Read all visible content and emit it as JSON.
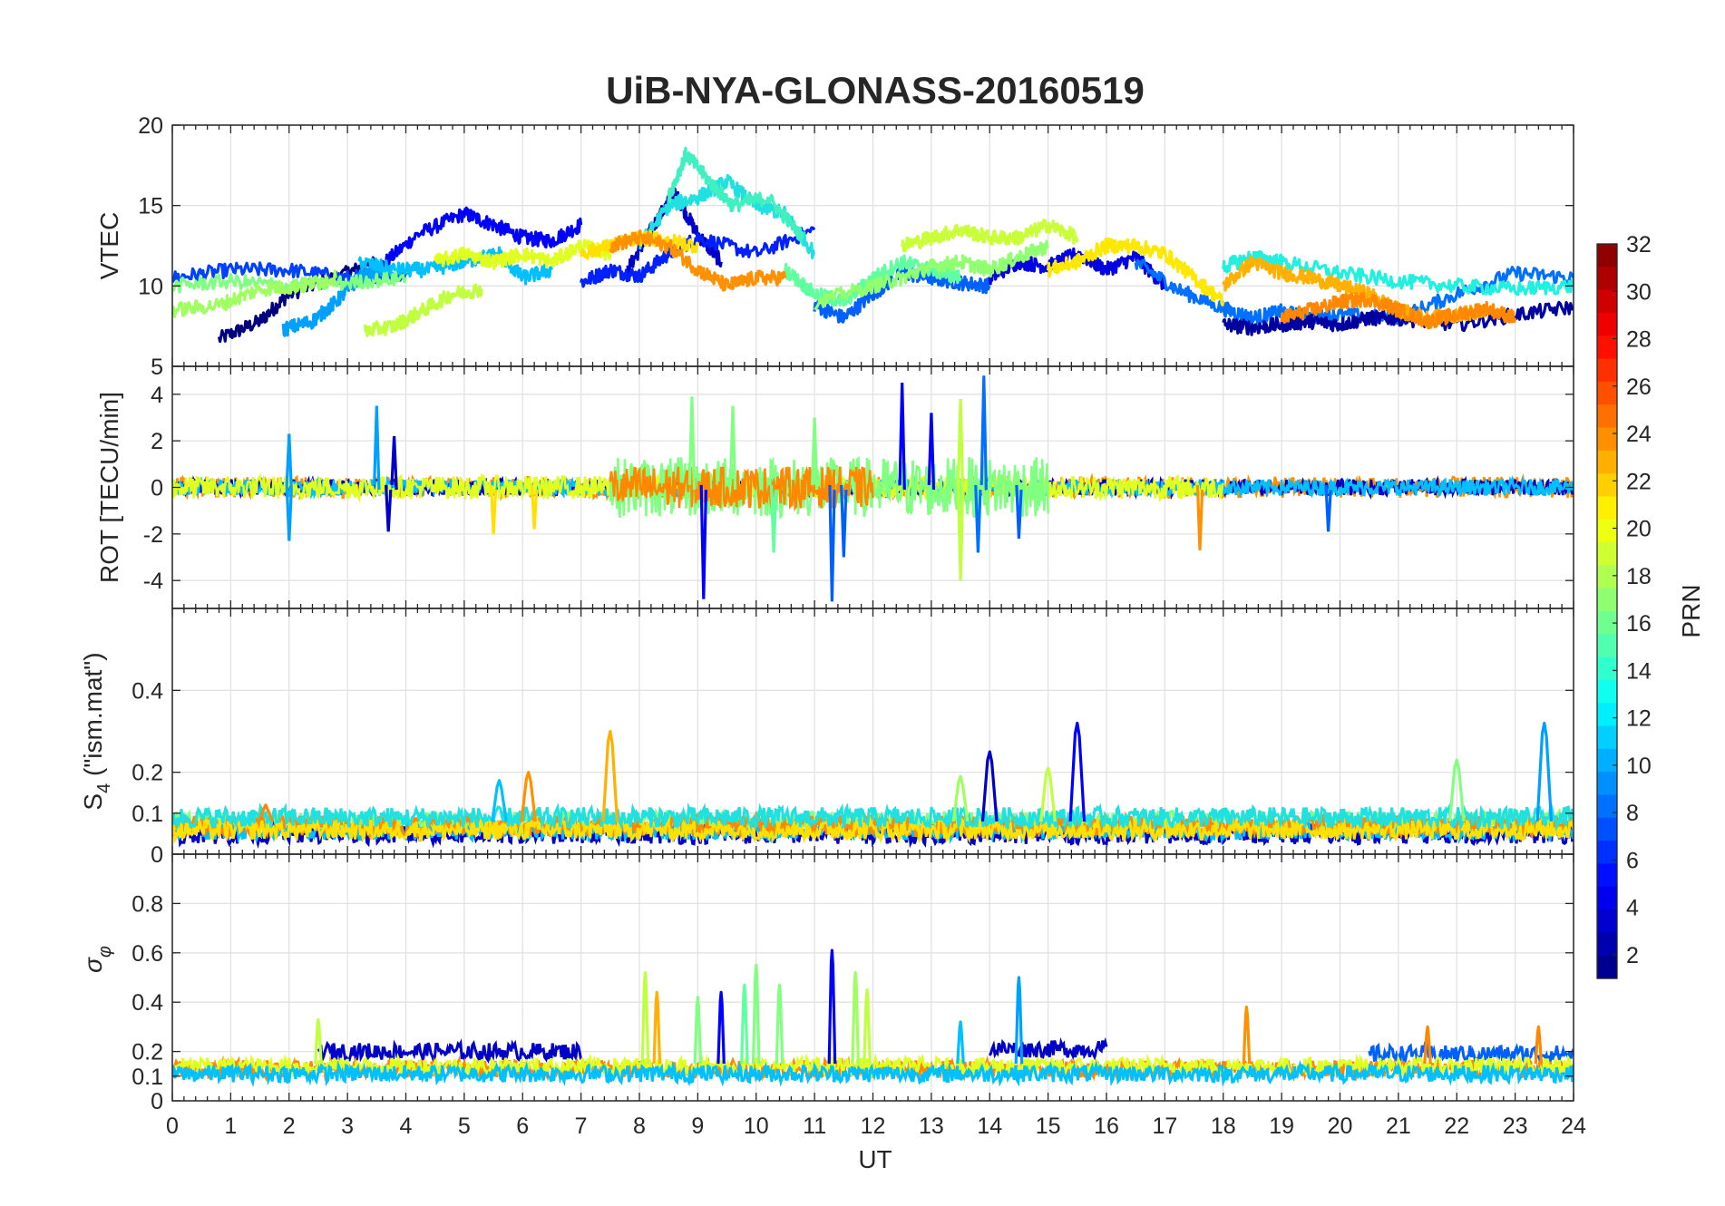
{
  "figure": {
    "title": "UiB-NYA-GLONASS-20160519"
  },
  "chart_data": [
    {
      "type": "line",
      "panel": "vtec",
      "ylabel": "VTEC",
      "xlim": [
        0,
        24
      ],
      "ylim": [
        5,
        20
      ],
      "yticks": [
        5,
        10,
        15,
        20
      ],
      "x_tick_labels": "none",
      "grid": true,
      "series": [
        {
          "prn": 1,
          "color": "#00007f",
          "x": [
            0.8,
            1.5,
            2.0,
            3.0,
            3.5
          ],
          "y": [
            6.7,
            7.8,
            9.5,
            10.8,
            11.5
          ]
        },
        {
          "prn": 5,
          "color": "#0000ff",
          "x": [
            3.5,
            4.2,
            5.0,
            5.5,
            6.0,
            6.5,
            7.0
          ],
          "y": [
            11.0,
            13.2,
            14.5,
            13.8,
            13.0,
            12.8,
            13.8
          ]
        },
        {
          "prn": 3,
          "color": "#0000c8",
          "x": [
            7.8,
            8.2,
            8.6,
            9.0,
            9.4
          ],
          "y": [
            11.0,
            13.5,
            15.8,
            13.2,
            11.5
          ]
        },
        {
          "prn": 8,
          "color": "#0040ff",
          "x": [
            0.0,
            1.0,
            2.0,
            3.0,
            4.0
          ],
          "y": [
            10.5,
            11.0,
            11.0,
            10.5,
            10.8
          ]
        },
        {
          "prn": 7,
          "color": "#0020ff",
          "x": [
            7.0,
            7.5,
            8.0,
            8.5,
            9.0,
            10.0,
            11.0
          ],
          "y": [
            10.2,
            11.0,
            10.6,
            12.0,
            13.0,
            12.0,
            13.5
          ]
        },
        {
          "prn": 9,
          "color": "#0060ff",
          "x": [
            11.0,
            11.5,
            12.0,
            12.5,
            13.0,
            13.5,
            14.0
          ],
          "y": [
            8.8,
            8.0,
            9.5,
            10.8,
            10.5,
            10.2,
            10.0
          ]
        },
        {
          "prn": 4,
          "color": "#0000e0",
          "x": [
            14.0,
            14.5,
            15.0,
            15.5,
            16.0,
            16.5,
            17.0
          ],
          "y": [
            10.5,
            11.5,
            11.2,
            12.0,
            11.0,
            11.8,
            10.0
          ]
        },
        {
          "prn": 10,
          "color": "#0070ff",
          "x": [
            16.5,
            17.2,
            18.0,
            18.5,
            19.0,
            19.5,
            20.0,
            21.0,
            22.0,
            23.0,
            24.0
          ],
          "y": [
            11.5,
            9.8,
            8.6,
            8.0,
            8.4,
            8.0,
            8.2,
            8.0,
            9.5,
            10.8,
            10.5
          ]
        },
        {
          "prn": 2,
          "color": "#0000a0",
          "x": [
            18.0,
            18.5,
            19.0,
            19.5,
            20.0,
            20.5,
            21.0,
            22.0,
            23.0,
            24.0
          ],
          "y": [
            7.6,
            7.4,
            7.6,
            7.8,
            7.6,
            8.0,
            8.0,
            7.6,
            8.2,
            8.7
          ]
        },
        {
          "prn": 11,
          "color": "#00a0ff",
          "x": [
            1.9,
            2.4,
            2.8,
            3.2,
            3.6
          ],
          "y": [
            7.3,
            7.8,
            9.0,
            10.5,
            11.0
          ]
        },
        {
          "prn": 12,
          "color": "#00c0ff",
          "x": [
            3.2,
            3.8,
            4.4,
            5.0,
            5.6,
            6.0,
            6.5
          ],
          "y": [
            11.5,
            11.0,
            11.0,
            11.5,
            12.0,
            10.5,
            11.0
          ]
        },
        {
          "prn": 13,
          "color": "#20e0e0",
          "x": [
            8.0,
            8.5,
            9.0,
            9.5,
            10.0,
            10.5,
            11.0
          ],
          "y": [
            12.5,
            15.0,
            15.5,
            16.5,
            15.0,
            14.5,
            12.0
          ]
        },
        {
          "prn": 14,
          "color": "#40f0c0",
          "x": [
            8.5,
            8.8,
            9.2,
            9.6,
            10.2,
            10.8
          ],
          "y": [
            15.5,
            18.2,
            16.5,
            15.0,
            15.5,
            13.0
          ]
        },
        {
          "prn": 15,
          "color": "#60ffa0",
          "x": [
            10.5,
            11.0,
            11.5,
            12.0,
            12.5,
            13.0,
            13.5
          ],
          "y": [
            11.0,
            9.5,
            9.0,
            10.5,
            11.5,
            11.0,
            10.5
          ]
        },
        {
          "prn": 13,
          "color": "#20f0e0",
          "x": [
            18.0,
            18.5,
            19.0,
            20.0,
            21.0,
            22.0,
            23.0,
            24.0
          ],
          "y": [
            11.2,
            11.8,
            11.5,
            10.8,
            10.3,
            10.0,
            9.8,
            10.0
          ]
        },
        {
          "prn": 16,
          "color": "#80ff80",
          "x": [
            0.0,
            1.0,
            2.0,
            3.0,
            4.0
          ],
          "y": [
            10.0,
            10.3,
            10.0,
            10.2,
            10.5
          ]
        },
        {
          "prn": 17,
          "color": "#a0ff60",
          "x": [
            0.0,
            0.8,
            1.5,
            2.2,
            2.8
          ],
          "y": [
            8.5,
            8.8,
            9.8,
            10.0,
            10.5
          ]
        },
        {
          "prn": 16,
          "color": "#90ff70",
          "x": [
            11.0,
            12.0,
            12.5,
            13.0,
            13.5,
            14.0,
            14.5,
            15.0
          ],
          "y": [
            9.0,
            10.0,
            10.5,
            11.2,
            11.5,
            11.0,
            11.8,
            12.5
          ]
        },
        {
          "prn": 18,
          "color": "#c0ff40",
          "x": [
            3.3,
            3.8,
            4.3,
            4.8,
            5.3
          ],
          "y": [
            7.2,
            7.5,
            8.5,
            9.5,
            9.8
          ]
        },
        {
          "prn": 18,
          "color": "#c8ff38",
          "x": [
            12.5,
            13.0,
            13.5,
            14.0,
            14.5,
            15.0,
            15.5
          ],
          "y": [
            12.5,
            13.0,
            13.5,
            13.0,
            13.0,
            13.8,
            13.0
          ]
        },
        {
          "prn": 19,
          "color": "#e0ff20",
          "x": [
            4.5,
            5.0,
            5.5,
            6.0,
            6.5,
            7.0,
            7.5
          ],
          "y": [
            11.5,
            12.0,
            11.5,
            12.0,
            11.5,
            12.5,
            12.0
          ]
        },
        {
          "prn": 20,
          "color": "#ffe000",
          "x": [
            7.0,
            7.5,
            8.0,
            8.5,
            9.0
          ],
          "y": [
            12.0,
            12.5,
            13.0,
            12.8,
            12.5
          ]
        },
        {
          "prn": 20,
          "color": "#ffe800",
          "x": [
            15.0,
            15.5,
            16.0,
            16.5,
            17.0,
            17.5,
            18.0
          ],
          "y": [
            11.0,
            11.5,
            12.5,
            12.5,
            12.0,
            10.5,
            9.0
          ]
        },
        {
          "prn": 22,
          "color": "#ffb000",
          "x": [
            18.0,
            18.5,
            19.0,
            19.5,
            20.0,
            20.5,
            21.0,
            21.5,
            22.0,
            22.5
          ],
          "y": [
            10.0,
            11.5,
            10.8,
            10.5,
            10.0,
            9.5,
            8.5,
            8.0,
            8.2,
            8.5
          ]
        },
        {
          "prn": 23,
          "color": "#ff9000",
          "x": [
            7.5,
            8.0,
            8.5,
            9.0,
            9.5,
            10.0,
            10.5
          ],
          "y": [
            12.5,
            13.0,
            12.5,
            11.0,
            10.0,
            10.5,
            10.5
          ]
        },
        {
          "prn": 23,
          "color": "#ff8800",
          "x": [
            19.0,
            19.5,
            20.0,
            20.5,
            21.0,
            21.5,
            22.0,
            22.5,
            23.0
          ],
          "y": [
            8.0,
            8.5,
            9.0,
            9.2,
            8.5,
            7.8,
            8.2,
            8.6,
            8.0
          ]
        }
      ]
    },
    {
      "type": "line",
      "panel": "rot",
      "ylabel": "ROT [TECU/min]",
      "xlim": [
        0,
        24
      ],
      "ylim": [
        -5.2,
        5.2
      ],
      "yticks": [
        -4,
        -2,
        0,
        2,
        4
      ],
      "x_tick_labels": "none",
      "grid": true,
      "spikes": [
        {
          "x": 2.0,
          "y": 2.3,
          "color": "#00a0ff"
        },
        {
          "x": 2.0,
          "y": -2.3,
          "color": "#00a0ff"
        },
        {
          "x": 3.5,
          "y": 3.5,
          "color": "#00a0ff"
        },
        {
          "x": 3.7,
          "y": -1.9,
          "color": "#0000c8"
        },
        {
          "x": 3.8,
          "y": 2.2,
          "color": "#0000c8"
        },
        {
          "x": 5.5,
          "y": -2.0,
          "color": "#ffe000"
        },
        {
          "x": 6.2,
          "y": -1.8,
          "color": "#ffe000"
        },
        {
          "x": 8.9,
          "y": 3.9,
          "color": "#80ff80"
        },
        {
          "x": 9.1,
          "y": -4.8,
          "color": "#0000ff"
        },
        {
          "x": 9.6,
          "y": 3.5,
          "color": "#80ff80"
        },
        {
          "x": 10.3,
          "y": -2.8,
          "color": "#60ffa0"
        },
        {
          "x": 11.0,
          "y": 3.0,
          "color": "#80ff80"
        },
        {
          "x": 11.3,
          "y": -4.9,
          "color": "#0060ff"
        },
        {
          "x": 11.5,
          "y": -3.0,
          "color": "#0060ff"
        },
        {
          "x": 12.5,
          "y": 4.5,
          "color": "#0000ff"
        },
        {
          "x": 13.0,
          "y": 3.2,
          "color": "#0000ff"
        },
        {
          "x": 13.5,
          "y": 3.8,
          "color": "#c0ff40"
        },
        {
          "x": 13.5,
          "y": -4.0,
          "color": "#c0ff40"
        },
        {
          "x": 13.9,
          "y": 4.8,
          "color": "#0070ff"
        },
        {
          "x": 13.8,
          "y": -2.8,
          "color": "#0070ff"
        },
        {
          "x": 14.5,
          "y": -2.2,
          "color": "#0060ff"
        },
        {
          "x": 17.6,
          "y": -2.7,
          "color": "#ff9000"
        },
        {
          "x": 19.8,
          "y": -1.9,
          "color": "#0060ff"
        }
      ],
      "noise_bands": [
        {
          "x_from": 0,
          "x_to": 24,
          "amplitude": 0.45,
          "color": "#ff9000"
        },
        {
          "x_from": 0,
          "x_to": 24,
          "amplitude": 0.35,
          "color": "#0000c8"
        },
        {
          "x_from": 0,
          "x_to": 24,
          "amplitude": 0.35,
          "color": "#00c0ff"
        },
        {
          "x_from": 0,
          "x_to": 18,
          "amplitude": 0.5,
          "color": "#e0ff20"
        },
        {
          "x_from": 7.5,
          "x_to": 15,
          "amplitude": 1.3,
          "color": "#80ff80"
        },
        {
          "x_from": 7.5,
          "x_to": 12,
          "amplitude": 0.9,
          "color": "#ff8800"
        }
      ]
    },
    {
      "type": "line",
      "panel": "s4",
      "ylabel": "S4 (\"ism.mat\")",
      "xlim": [
        0,
        24
      ],
      "ylim": [
        0,
        0.6
      ],
      "yticks": [
        0,
        0.1,
        0.2,
        0.4
      ],
      "x_tick_labels": "none",
      "grid": true,
      "baseline": [
        {
          "color": "#0000c8",
          "level": 0.05
        },
        {
          "color": "#00c0ff",
          "level": 0.06
        },
        {
          "color": "#80ff80",
          "level": 0.08
        },
        {
          "color": "#ff8800",
          "level": 0.07
        },
        {
          "color": "#ffe000",
          "level": 0.06
        },
        {
          "color": "#20e0e0",
          "level": 0.09
        }
      ],
      "peaks": [
        {
          "x": 7.5,
          "y": 0.3,
          "color": "#ffb000"
        },
        {
          "x": 5.6,
          "y": 0.18,
          "color": "#00c0ff"
        },
        {
          "x": 6.1,
          "y": 0.2,
          "color": "#ff9000"
        },
        {
          "x": 1.6,
          "y": 0.12,
          "color": "#ff8800"
        },
        {
          "x": 14.0,
          "y": 0.25,
          "color": "#0000c8"
        },
        {
          "x": 13.5,
          "y": 0.19,
          "color": "#a0ff60"
        },
        {
          "x": 15.0,
          "y": 0.21,
          "color": "#c0ff40"
        },
        {
          "x": 15.5,
          "y": 0.32,
          "color": "#0000ff"
        },
        {
          "x": 22.0,
          "y": 0.23,
          "color": "#80ff80"
        },
        {
          "x": 23.5,
          "y": 0.32,
          "color": "#00a0ff"
        }
      ]
    },
    {
      "type": "line",
      "panel": "sigma_phi",
      "ylabel": "σφ",
      "xlabel": "UT",
      "xlim": [
        0,
        24
      ],
      "ylim": [
        0,
        1
      ],
      "yticks": [
        0,
        0.1,
        0.2,
        0.4,
        0.6,
        0.8
      ],
      "xticks": [
        0,
        1,
        2,
        3,
        4,
        5,
        6,
        7,
        8,
        9,
        10,
        11,
        12,
        13,
        14,
        15,
        16,
        17,
        18,
        19,
        20,
        21,
        22,
        23,
        24
      ],
      "grid": true,
      "baseline": [
        {
          "color": "#0000c8",
          "level": 0.2,
          "x_from": 2.5,
          "x_to": 7.0
        },
        {
          "color": "#0000c8",
          "level": 0.21,
          "x_from": 14.0,
          "x_to": 16.0
        },
        {
          "color": "#0060ff",
          "level": 0.19,
          "x_from": 20.5,
          "x_to": 24
        },
        {
          "color": "#ff8800",
          "level": 0.13,
          "x_from": 0,
          "x_to": 24
        },
        {
          "color": "#e0ff20",
          "level": 0.14,
          "x_from": 0,
          "x_to": 24
        },
        {
          "color": "#00c0ff",
          "level": 0.11,
          "x_from": 0,
          "x_to": 24
        }
      ],
      "peaks": [
        {
          "x": 2.5,
          "y": 0.33,
          "color": "#c0ff40"
        },
        {
          "x": 8.1,
          "y": 0.52,
          "color": "#c0ff40"
        },
        {
          "x": 8.3,
          "y": 0.44,
          "color": "#ffb000"
        },
        {
          "x": 9.0,
          "y": 0.42,
          "color": "#80ff80"
        },
        {
          "x": 9.4,
          "y": 0.44,
          "color": "#0000ff"
        },
        {
          "x": 9.8,
          "y": 0.47,
          "color": "#60ffa0"
        },
        {
          "x": 10.0,
          "y": 0.55,
          "color": "#80ff80"
        },
        {
          "x": 10.4,
          "y": 0.47,
          "color": "#80ff80"
        },
        {
          "x": 11.3,
          "y": 0.61,
          "color": "#0000ff"
        },
        {
          "x": 11.7,
          "y": 0.52,
          "color": "#a0ff60"
        },
        {
          "x": 11.9,
          "y": 0.45,
          "color": "#c0ff40"
        },
        {
          "x": 13.5,
          "y": 0.32,
          "color": "#00c0ff"
        },
        {
          "x": 14.5,
          "y": 0.5,
          "color": "#00a0ff"
        },
        {
          "x": 18.4,
          "y": 0.38,
          "color": "#ff9000"
        },
        {
          "x": 21.5,
          "y": 0.3,
          "color": "#ff8800"
        },
        {
          "x": 23.4,
          "y": 0.3,
          "color": "#ff8800"
        }
      ]
    }
  ],
  "colorbar": {
    "label": "PRN",
    "range": [
      1,
      32
    ],
    "ticks": [
      2,
      4,
      6,
      8,
      10,
      12,
      14,
      16,
      18,
      20,
      22,
      24,
      26,
      28,
      30,
      32
    ],
    "colormap": "jet",
    "levels": 32
  }
}
